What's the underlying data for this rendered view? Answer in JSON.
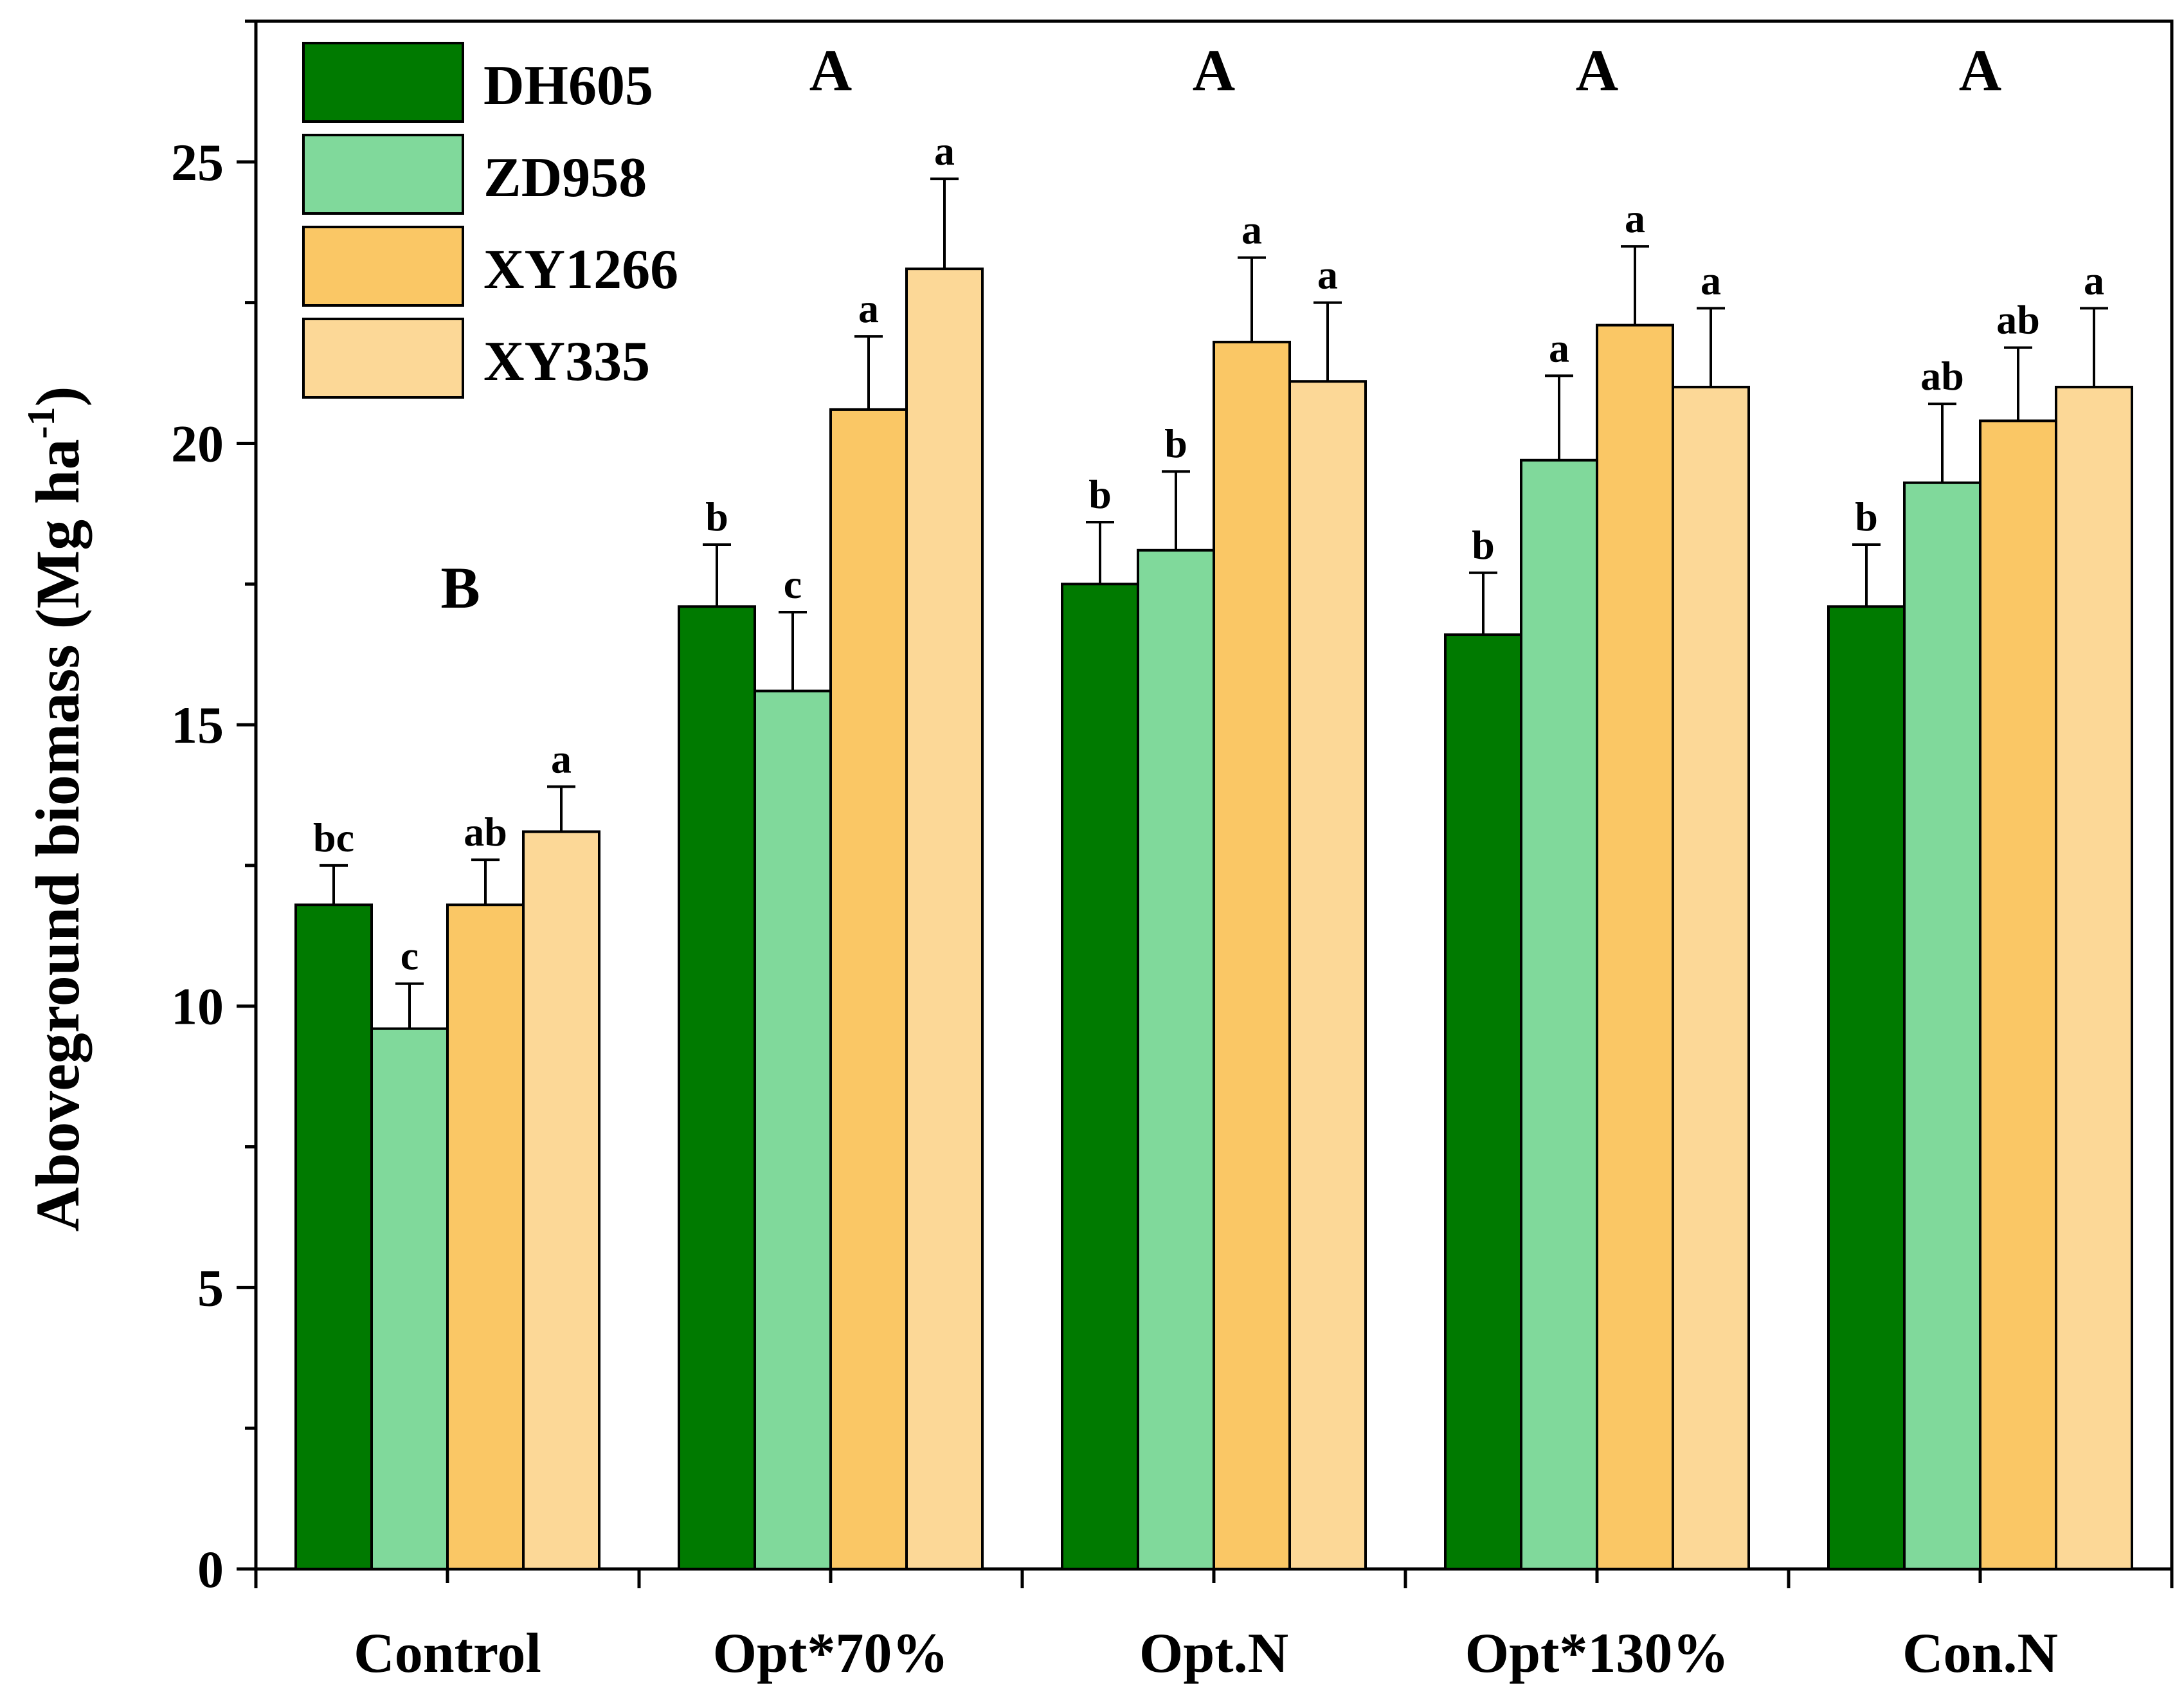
{
  "chart_data": {
    "type": "bar",
    "title": "",
    "xlabel": "",
    "ylabel": "Aboveground biomass (Mg ha",
    "ylabel_sup": "-1",
    "ylabel_close": ")",
    "ylim": [
      0,
      27.5
    ],
    "yticks": [
      0,
      5,
      10,
      15,
      20,
      25
    ],
    "grid": false,
    "legend_position": "top-left",
    "categories": [
      "Control",
      "Opt*70%",
      "Opt.N",
      "Opt*130%",
      "Con.N"
    ],
    "series": [
      {
        "name": "DH605",
        "color": "#007a00",
        "values": [
          11.8,
          17.1,
          17.5,
          16.6,
          17.1
        ],
        "errors": [
          0.7,
          1.1,
          1.1,
          1.1,
          1.1
        ],
        "labels": [
          "bc",
          "b",
          "b",
          "b",
          "b"
        ]
      },
      {
        "name": "ZD958",
        "color": "#80d99b",
        "values": [
          9.6,
          15.6,
          18.1,
          19.7,
          19.3
        ],
        "errors": [
          0.8,
          1.4,
          1.4,
          1.5,
          1.4
        ],
        "labels": [
          "c",
          "c",
          "b",
          "a",
          "ab"
        ]
      },
      {
        "name": "XY1266",
        "color": "#fac765",
        "values": [
          11.8,
          20.6,
          21.8,
          22.1,
          20.4
        ],
        "errors": [
          0.8,
          1.3,
          1.5,
          1.4,
          1.3
        ],
        "labels": [
          "ab",
          "a",
          "a",
          "a",
          "ab"
        ]
      },
      {
        "name": "XY335",
        "color": "#fcd897",
        "values": [
          13.1,
          23.1,
          21.1,
          21.0,
          21.0
        ],
        "errors": [
          0.8,
          1.6,
          1.4,
          1.4,
          1.4
        ],
        "labels": [
          "a",
          "a",
          "a",
          "a",
          "a"
        ]
      }
    ],
    "group_letters": [
      "B",
      "A",
      "A",
      "A",
      "A"
    ]
  }
}
